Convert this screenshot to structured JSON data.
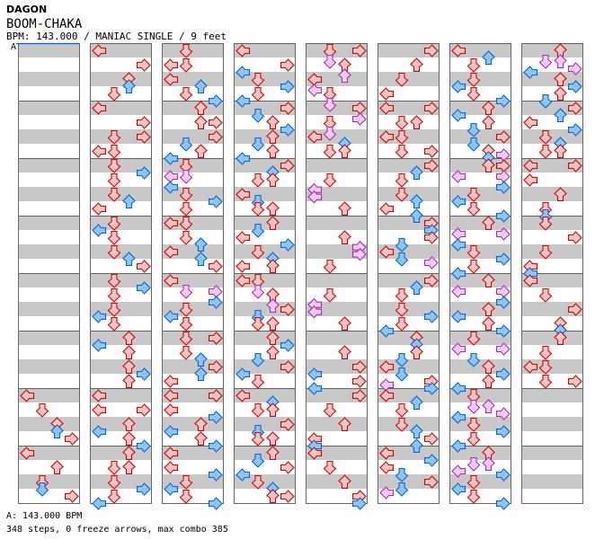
{
  "header": {
    "artist": "DAGON",
    "title": "BOOM-CHAKA",
    "info": "BPM: 143.000 / MANIAC SINGLE / 9 feet",
    "bpm_marker": "A"
  },
  "footer": {
    "bpm_line": "A: 143.000 BPM",
    "stats": "348 steps, 0 freeze arrows, max combo 385"
  },
  "colors": {
    "quarter": {
      "stroke": "#d40000",
      "fill": "#ffc4c4"
    },
    "eighth": {
      "stroke": "#0064d8",
      "fill": "#90c4f4"
    },
    "sixteenth": {
      "stroke": "#a030a8",
      "fill": "#ffc8ff"
    },
    "stripe": "#c8c8c8",
    "border": "#666666",
    "bpm_line": "#0064d8"
  },
  "chart_data": {
    "type": "stepchart",
    "lanes": [
      "L",
      "D",
      "U",
      "R"
    ],
    "measures_per_column": 8,
    "offset_unit": "16th note",
    "measures": [
      [],
      [],
      [],
      [],
      [],
      [],
      [
        [
          0,
          "L"
        ],
        [
          4,
          "D"
        ],
        [
          8,
          "U"
        ],
        [
          10,
          "U"
        ],
        [
          12,
          "R"
        ]
      ],
      [
        [
          0,
          "L"
        ],
        [
          4,
          "U"
        ],
        [
          8,
          "D"
        ],
        [
          10,
          "D"
        ],
        [
          12,
          "R"
        ]
      ],
      [
        [
          0,
          "L"
        ],
        [
          4,
          "R"
        ],
        [
          8,
          "U"
        ],
        [
          10,
          "U"
        ],
        [
          12,
          "D"
        ]
      ],
      [
        [
          0,
          "L"
        ],
        [
          4,
          "R"
        ],
        [
          8,
          "DR"
        ],
        [
          12,
          "LD"
        ]
      ],
      [
        [
          0,
          "D"
        ],
        [
          2,
          "R"
        ],
        [
          4,
          "D"
        ],
        [
          8,
          "D"
        ],
        [
          10,
          "U"
        ],
        [
          12,
          "L"
        ]
      ],
      [
        [
          0,
          "D"
        ],
        [
          2,
          "L"
        ],
        [
          4,
          "D"
        ],
        [
          8,
          "D"
        ],
        [
          10,
          "U"
        ],
        [
          12,
          "R"
        ]
      ],
      [
        [
          0,
          "D"
        ],
        [
          2,
          "R"
        ],
        [
          4,
          "D"
        ],
        [
          8,
          "D"
        ],
        [
          10,
          "L"
        ],
        [
          12,
          "D"
        ]
      ],
      [
        [
          0,
          "U"
        ],
        [
          2,
          "L"
        ],
        [
          4,
          "U"
        ],
        [
          8,
          "U"
        ],
        [
          10,
          "R"
        ],
        [
          12,
          "U"
        ]
      ],
      [
        [
          0,
          "L"
        ],
        [
          4,
          "LR"
        ],
        [
          8,
          "U"
        ],
        [
          10,
          "L"
        ],
        [
          12,
          "U"
        ],
        [
          14,
          "R"
        ]
      ],
      [
        [
          0,
          "U"
        ],
        [
          4,
          "DU"
        ],
        [
          8,
          "D"
        ],
        [
          10,
          "R"
        ],
        [
          12,
          "D"
        ],
        [
          14,
          "L"
        ]
      ],
      [
        [
          0,
          "D"
        ],
        [
          4,
          "LD"
        ],
        [
          8,
          "L"
        ],
        [
          10,
          "U"
        ],
        [
          12,
          "D"
        ],
        [
          14,
          "R"
        ]
      ],
      [
        [
          0,
          "U"
        ],
        [
          4,
          "UR"
        ],
        [
          8,
          "R"
        ],
        [
          10,
          "D"
        ],
        [
          12,
          "U"
        ],
        [
          14,
          "L"
        ]
      ],
      [
        [
          0,
          "D"
        ],
        [
          3,
          "LD"
        ],
        [
          6,
          "L"
        ],
        [
          8,
          "D"
        ],
        [
          10,
          "R"
        ],
        [
          12,
          "D"
        ]
      ],
      [
        [
          0,
          "LD"
        ],
        [
          4,
          "D"
        ],
        [
          6,
          "U"
        ],
        [
          8,
          "L"
        ],
        [
          10,
          "U"
        ],
        [
          12,
          "R"
        ]
      ],
      [
        [
          0,
          "L"
        ],
        [
          3,
          "DR"
        ],
        [
          6,
          "R"
        ],
        [
          8,
          "D"
        ],
        [
          10,
          "L"
        ],
        [
          12,
          "D"
        ]
      ],
      [
        [
          0,
          "DR"
        ],
        [
          4,
          "D"
        ],
        [
          6,
          "U"
        ],
        [
          8,
          "R"
        ],
        [
          10,
          "U"
        ],
        [
          12,
          "L"
        ]
      ],
      [
        [
          0,
          "LR"
        ],
        [
          4,
          "L"
        ],
        [
          6,
          "R"
        ],
        [
          8,
          "U"
        ],
        [
          10,
          "L"
        ],
        [
          12,
          "U"
        ],
        [
          14,
          "R"
        ]
      ],
      [
        [
          0,
          "L"
        ],
        [
          4,
          "L"
        ],
        [
          6,
          "R"
        ],
        [
          8,
          "D"
        ],
        [
          10,
          "L"
        ],
        [
          12,
          "D"
        ],
        [
          14,
          "R"
        ]
      ],
      [
        [
          0,
          "L"
        ],
        [
          4,
          "R"
        ],
        [
          6,
          "L"
        ],
        [
          8,
          "D"
        ],
        [
          10,
          "R"
        ],
        [
          12,
          "D"
        ],
        [
          14,
          "L"
        ]
      ],
      [
        [
          0,
          "R"
        ],
        [
          2,
          "D"
        ],
        [
          4,
          "U"
        ],
        [
          6,
          "R"
        ],
        [
          8,
          "U"
        ],
        [
          10,
          "D"
        ],
        [
          12,
          "U"
        ],
        [
          14,
          "L"
        ]
      ],
      [
        [
          0,
          "R"
        ],
        [
          2,
          "U"
        ],
        [
          4,
          "DU"
        ],
        [
          8,
          "L"
        ],
        [
          10,
          "D"
        ],
        [
          12,
          "DU"
        ]
      ],
      [
        [
          0,
          "U"
        ],
        [
          2,
          "D"
        ],
        [
          4,
          "L"
        ],
        [
          6,
          "R"
        ],
        [
          8,
          "D"
        ],
        [
          10,
          "U"
        ],
        [
          12,
          "LU"
        ]
      ],
      [
        [
          0,
          "LD"
        ],
        [
          3,
          "D"
        ],
        [
          4,
          "U"
        ],
        [
          7,
          "U"
        ],
        [
          8,
          "R"
        ],
        [
          10,
          "D"
        ],
        [
          12,
          "DU"
        ]
      ],
      [
        [
          0,
          "U"
        ],
        [
          2,
          "R"
        ],
        [
          4,
          "U"
        ],
        [
          6,
          "D"
        ],
        [
          8,
          "R"
        ],
        [
          10,
          "L"
        ],
        [
          12,
          "D"
        ]
      ],
      [
        [
          0,
          "L"
        ],
        [
          2,
          "U"
        ],
        [
          4,
          "DU"
        ],
        [
          8,
          "R"
        ],
        [
          10,
          "D"
        ],
        [
          12,
          "DU"
        ]
      ],
      [
        [
          0,
          "U"
        ],
        [
          2,
          "D"
        ],
        [
          4,
          "R"
        ],
        [
          6,
          "L"
        ],
        [
          8,
          "D"
        ],
        [
          10,
          "U"
        ],
        [
          12,
          "UR"
        ]
      ],
      [
        [
          0,
          "DR"
        ],
        [
          3,
          "D"
        ],
        [
          4,
          "U"
        ],
        [
          7,
          "U"
        ],
        [
          8,
          "L"
        ],
        [
          11,
          "L"
        ],
        [
          12,
          "D"
        ],
        [
          15,
          "D"
        ]
      ],
      [
        [
          0,
          "R"
        ],
        [
          3,
          "R"
        ],
        [
          4,
          "D"
        ],
        [
          7,
          "D"
        ],
        [
          8,
          "L"
        ],
        [
          10,
          "U"
        ],
        [
          12,
          "DU"
        ]
      ],
      [
        [
          4,
          "D"
        ],
        [
          6.67,
          "L"
        ],
        [
          8.67,
          "L"
        ],
        [
          12,
          "U"
        ]
      ],
      [
        [
          4,
          "U"
        ],
        [
          6.67,
          "R"
        ],
        [
          8.67,
          "R"
        ],
        [
          12,
          "D"
        ]
      ],
      [
        [
          4,
          "D"
        ],
        [
          6.67,
          "L"
        ],
        [
          8.67,
          "L"
        ],
        [
          12,
          "U"
        ]
      ],
      [
        [
          4,
          "U"
        ],
        [
          8,
          "R"
        ],
        [
          10,
          "L"
        ],
        [
          12,
          "R"
        ],
        [
          14,
          "L"
        ]
      ],
      [
        [
          0,
          "R"
        ],
        [
          4,
          "D"
        ],
        [
          8,
          "U"
        ],
        [
          12,
          "L"
        ],
        [
          14,
          "L"
        ]
      ],
      [
        [
          0,
          "L"
        ],
        [
          4,
          "D"
        ],
        [
          8,
          "U"
        ],
        [
          12,
          "R"
        ],
        [
          14,
          "R"
        ]
      ],
      [
        [
          0,
          "R"
        ],
        [
          4,
          "U"
        ],
        [
          8,
          "D"
        ],
        [
          12,
          "L"
        ]
      ],
      [
        [
          0,
          "LR"
        ],
        [
          4,
          "DU"
        ],
        [
          8,
          "LD"
        ],
        [
          12,
          "DR"
        ]
      ],
      [
        [
          0,
          "R"
        ],
        [
          2,
          "U"
        ],
        [
          4,
          "D"
        ],
        [
          8,
          "D"
        ],
        [
          10,
          "U"
        ],
        [
          12,
          "L"
        ],
        [
          14,
          "U"
        ]
      ],
      [
        [
          0,
          "R"
        ],
        [
          2,
          "R"
        ],
        [
          4,
          "R"
        ],
        [
          6,
          "D"
        ],
        [
          8,
          "L"
        ],
        [
          10,
          "D"
        ],
        [
          11,
          "R"
        ]
      ],
      [
        [
          0,
          "R"
        ],
        [
          2,
          "U"
        ],
        [
          4,
          "D"
        ],
        [
          8,
          "D"
        ],
        [
          10,
          "R"
        ],
        [
          12,
          "D"
        ],
        [
          14,
          "L"
        ]
      ],
      [
        [
          0,
          "U"
        ],
        [
          2,
          "U"
        ],
        [
          4,
          "U"
        ],
        [
          6,
          "D"
        ],
        [
          8,
          "L"
        ],
        [
          10,
          "D"
        ],
        [
          12,
          "R"
        ],
        [
          13,
          "L"
        ],
        [
          14,
          "R"
        ]
      ],
      [
        [
          0,
          "L"
        ],
        [
          2,
          "U"
        ],
        [
          4,
          "D"
        ],
        [
          8,
          "D"
        ],
        [
          10,
          "U"
        ],
        [
          12,
          "R"
        ],
        [
          14,
          "U"
        ]
      ],
      [
        [
          0,
          "L"
        ],
        [
          2,
          "R"
        ],
        [
          4,
          "L"
        ],
        [
          6,
          "D"
        ],
        [
          8,
          "R"
        ],
        [
          10,
          "D"
        ],
        [
          11,
          "L"
        ]
      ],
      [
        [
          0,
          "L"
        ],
        [
          2,
          "U"
        ],
        [
          4,
          "D"
        ],
        [
          8,
          "D"
        ],
        [
          10,
          "L"
        ],
        [
          12,
          "D"
        ],
        [
          14,
          "R"
        ]
      ],
      [
        [
          0,
          "U"
        ],
        [
          2,
          "L"
        ],
        [
          4,
          "U"
        ],
        [
          6,
          "D"
        ],
        [
          8,
          "R"
        ],
        [
          10,
          "D"
        ],
        [
          12,
          "U"
        ],
        [
          13,
          "R"
        ],
        [
          14,
          "U"
        ]
      ],
      [
        [
          0,
          "UR"
        ],
        [
          3,
          "LR"
        ],
        [
          6,
          "R"
        ],
        [
          8,
          "D"
        ],
        [
          10,
          "L"
        ],
        [
          12,
          "D"
        ],
        [
          14,
          "R"
        ]
      ],
      [
        [
          0,
          "U"
        ],
        [
          3,
          "LR"
        ],
        [
          6,
          "L"
        ],
        [
          8,
          "D"
        ],
        [
          10,
          "R"
        ],
        [
          12,
          "D"
        ],
        [
          14,
          "L"
        ]
      ],
      [
        [
          0,
          "U"
        ],
        [
          3,
          "LR"
        ],
        [
          6,
          "R"
        ],
        [
          8,
          "U"
        ],
        [
          10,
          "L"
        ],
        [
          12,
          "U"
        ],
        [
          14,
          "R"
        ]
      ],
      [
        [
          0,
          "D"
        ],
        [
          3,
          "LR"
        ],
        [
          6,
          "D"
        ],
        [
          8,
          "U"
        ],
        [
          10,
          "R"
        ],
        [
          12,
          "U"
        ],
        [
          14,
          "L"
        ]
      ],
      [
        [
          0,
          "D"
        ],
        [
          3,
          "DU"
        ],
        [
          5,
          "R"
        ],
        [
          6,
          "L"
        ],
        [
          8,
          "D"
        ],
        [
          10,
          "R"
        ],
        [
          12,
          "D"
        ],
        [
          14,
          "L"
        ]
      ],
      [
        [
          0,
          "U"
        ],
        [
          3,
          "DU"
        ],
        [
          5,
          "L"
        ],
        [
          6,
          "R"
        ],
        [
          8,
          "D"
        ],
        [
          10,
          "L"
        ],
        [
          12,
          "D"
        ],
        [
          14,
          "R"
        ]
      ],
      [
        [
          0,
          "U"
        ],
        [
          3,
          "DU"
        ],
        [
          5,
          "R"
        ],
        [
          6,
          "L"
        ],
        [
          8,
          "U"
        ],
        [
          10,
          "R"
        ],
        [
          12,
          "U"
        ],
        [
          14,
          "D"
        ]
      ],
      [
        [
          0,
          "R"
        ],
        [
          2,
          "U"
        ],
        [
          4,
          "L"
        ],
        [
          6,
          "R"
        ],
        [
          8,
          "D"
        ],
        [
          10,
          "U"
        ],
        [
          12,
          "DU"
        ]
      ],
      [
        [
          0,
          "LR"
        ],
        [
          4,
          "L"
        ],
        [
          8,
          "U"
        ],
        [
          12,
          "D"
        ],
        [
          14,
          "D"
        ]
      ],
      [
        [
          0,
          "D"
        ],
        [
          4,
          "R"
        ],
        [
          8,
          "D"
        ],
        [
          12,
          "L"
        ],
        [
          14,
          "L"
        ]
      ],
      [
        [
          0,
          "L"
        ],
        [
          4,
          "D"
        ],
        [
          8,
          "R"
        ],
        [
          12,
          "U"
        ],
        [
          14,
          "U"
        ]
      ],
      [
        [
          0,
          "U"
        ],
        [
          4,
          "D"
        ],
        [
          8,
          "LD"
        ],
        [
          12,
          "DR"
        ]
      ],
      [],
      []
    ]
  }
}
